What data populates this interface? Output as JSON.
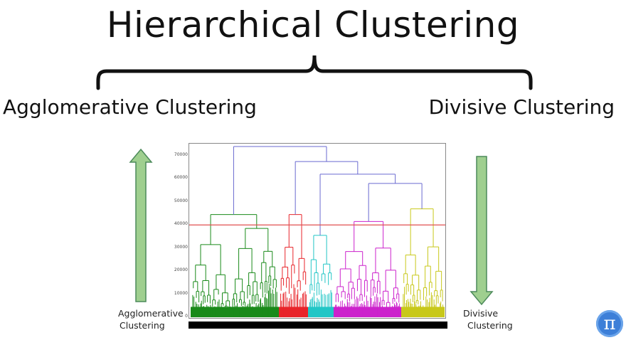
{
  "title": "Hierarchical Clustering",
  "left_label": "Agglomerative Clustering",
  "right_label": "Divisive Clustering",
  "left_arrow_label": [
    "Agglomerative",
    "Clustering"
  ],
  "right_arrow_label": [
    "Divisive",
    "Clustering"
  ],
  "logo_glyph": "π",
  "colors": {
    "green": "#1a8a1a",
    "red": "#e8242a",
    "cyan": "#22c6c6",
    "magenta": "#cc22cc",
    "yellow": "#c8c81a",
    "link": "#6a6ad0",
    "cut_line": "#e05050",
    "arrow_fill": "#9fcf8f",
    "arrow_stroke": "#4c8a5a"
  },
  "chart_data": {
    "type": "dendrogram",
    "y_ticks": [
      0,
      10000,
      20000,
      30000,
      40000,
      50000,
      60000,
      70000
    ],
    "ylim": [
      0,
      74000
    ],
    "cut_height": 40000
  }
}
